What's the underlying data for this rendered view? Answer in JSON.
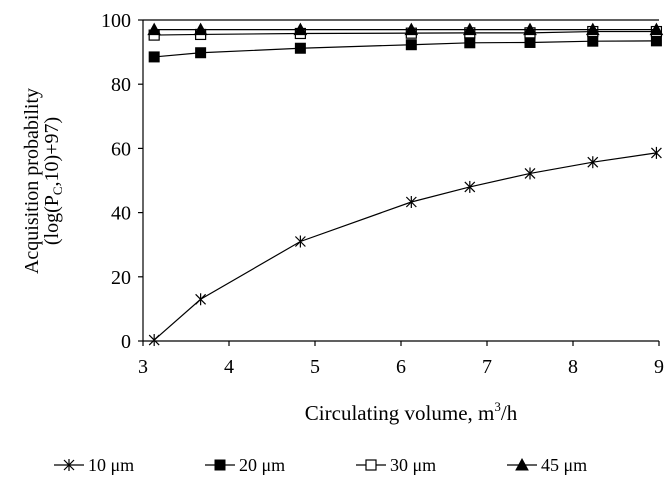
{
  "chart_data": {
    "type": "line",
    "title": "",
    "xlabel_main": "Circulating volume, m",
    "xlabel_sup": "3",
    "xlabel_tail": "/h",
    "ylabel_line1": "Acquisition probability",
    "ylabel_line2_pre": "(log(P",
    "ylabel_line2_sub": "C",
    "ylabel_line2_post": ",10)+97)",
    "xlim": [
      3,
      9
    ],
    "ylim": [
      0,
      100
    ],
    "xticks": [
      3,
      4,
      5,
      6,
      7,
      8,
      9
    ],
    "yticks": [
      0,
      20,
      40,
      60,
      80,
      100
    ],
    "grid": false,
    "legend_position": "bottom",
    "series": [
      {
        "name": "10 μm",
        "marker": "asterisk",
        "x": [
          3.13,
          3.67,
          4.83,
          6.12,
          6.8,
          7.5,
          8.23,
          8.97
        ],
        "y": [
          0.3,
          13,
          31,
          43.3,
          48,
          52.2,
          55.7,
          58.6
        ]
      },
      {
        "name": "20 μm",
        "marker": "filled-square",
        "x": [
          3.13,
          3.67,
          4.83,
          6.12,
          6.8,
          7.5,
          8.23,
          8.97
        ],
        "y": [
          88.5,
          89.8,
          91.2,
          92.3,
          92.9,
          93.0,
          93.4,
          93.5
        ]
      },
      {
        "name": "30 μm",
        "marker": "open-square",
        "x": [
          3.13,
          3.67,
          4.83,
          6.12,
          6.8,
          7.5,
          8.23,
          8.97
        ],
        "y": [
          95.3,
          95.5,
          95.8,
          95.9,
          96.0,
          96.0,
          96.4,
          96.4
        ]
      },
      {
        "name": "45 μm",
        "marker": "filled-triangle",
        "x": [
          3.13,
          3.67,
          4.83,
          6.12,
          6.8,
          7.5,
          8.23,
          8.97
        ],
        "y": [
          97.0,
          97.0,
          97.0,
          97.0,
          97.0,
          97.0,
          97.0,
          97.0
        ]
      }
    ]
  }
}
